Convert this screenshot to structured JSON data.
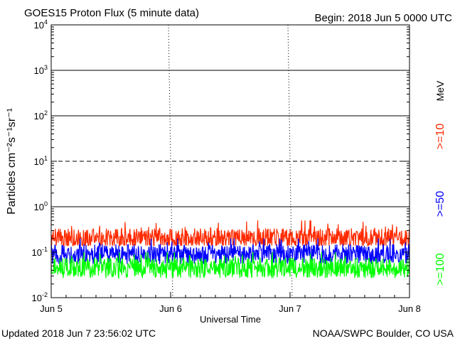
{
  "chart_data": {
    "type": "line",
    "title": "GOES15 Proton Flux (5 minute data)",
    "begin_label": "Begin: 2018 Jun 5 0000 UTC",
    "xlabel": "Universal Time",
    "ylabel": "Particles cm⁻²s⁻¹sr⁻¹",
    "unit_label": "MeV",
    "x_tick_labels": [
      "Jun 5",
      "Jun 6",
      "Jun 7",
      "Jun 8"
    ],
    "xlim_days": [
      0,
      3
    ],
    "yscale": "log",
    "ylim": [
      0.01,
      10000
    ],
    "y_ticks": [
      {
        "base": "10",
        "exp": "-2",
        "value": 0.01
      },
      {
        "base": "10",
        "exp": "-1",
        "value": 0.1
      },
      {
        "base": "10",
        "exp": "0",
        "value": 1
      },
      {
        "base": "10",
        "exp": "1",
        "value": 10
      },
      {
        "base": "10",
        "exp": "2",
        "value": 100
      },
      {
        "base": "10",
        "exp": "3",
        "value": 1000
      },
      {
        "base": "10",
        "exp": "4",
        "value": 10000
      }
    ],
    "reference_lines": [
      {
        "value": 1,
        "style": "solid"
      },
      {
        "value": 10,
        "style": "dashed"
      },
      {
        "value": 100,
        "style": "solid"
      },
      {
        "value": 1000,
        "style": "solid"
      }
    ],
    "series": [
      {
        "name": ">=10",
        "color": "#ff2a00",
        "typical": 0.2,
        "min": 0.14,
        "max": 0.5
      },
      {
        "name": ">=50",
        "color": "#0000ff",
        "typical": 0.09,
        "min": 0.055,
        "max": 0.2
      },
      {
        "name": ">=100",
        "color": "#00ff00",
        "typical": 0.045,
        "min": 0.025,
        "max": 0.1
      }
    ],
    "grid": false,
    "legend_position": "right, vertical"
  },
  "footer": {
    "updated": "Updated 2018 Jun  7 23:56:02 UTC",
    "source": "NOAA/SWPC Boulder, CO USA"
  }
}
